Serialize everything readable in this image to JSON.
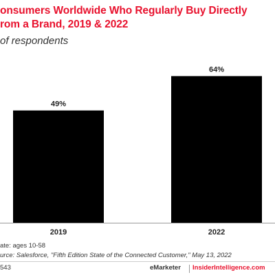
{
  "header": {
    "title_lines": [
      "onsumers Worldwide Who Regularly Buy Directly",
      "rom a Brand, 2019 & 2022"
    ],
    "subtitle": "of respondents"
  },
  "chart_data": {
    "type": "bar",
    "categories": [
      "2019",
      "2022"
    ],
    "values": [
      49,
      64
    ],
    "value_labels": [
      "49%",
      "64%"
    ],
    "ylim": [
      0,
      75
    ],
    "grid": false,
    "color": "#000000"
  },
  "footer": {
    "note": "ate: ages 10-58",
    "source": "urce: Salesforce, \"Fifth Edition State of the Connected Customer,\" May 13, 2022",
    "chart_id": "543",
    "brand_left": "eMarketer",
    "brand_right": "InsiderIntelligence.com"
  }
}
